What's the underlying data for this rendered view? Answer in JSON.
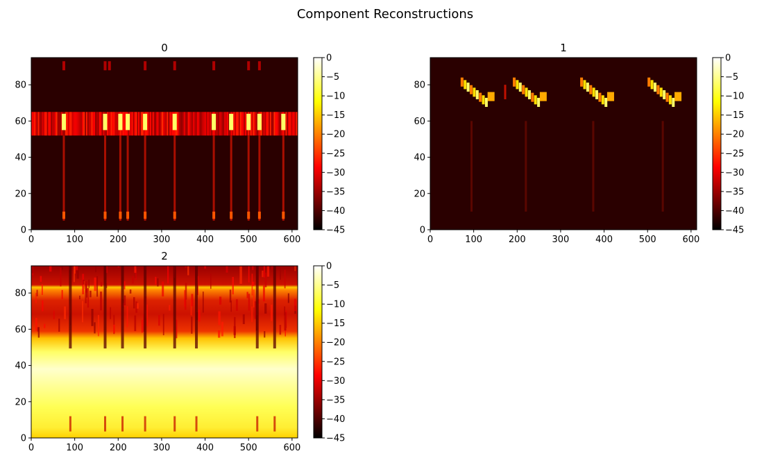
{
  "figure": {
    "title": "Component Reconstructions"
  },
  "chart_data": [
    {
      "type": "heatmap",
      "title": "0",
      "xlim": [
        0,
        613
      ],
      "ylim": [
        0,
        95
      ],
      "xticks": [
        0,
        100,
        200,
        300,
        400,
        500,
        600
      ],
      "yticks": [
        0,
        20,
        40,
        60,
        80
      ],
      "colorbar": {
        "range": [
          -45,
          0
        ],
        "ticks": [
          0,
          -5,
          -10,
          -15,
          -20,
          -25,
          -30,
          -35,
          -40,
          -45
        ]
      },
      "colormap": "hot",
      "pattern": "band",
      "band": {
        "y": [
          52,
          65
        ],
        "level": -28
      },
      "events_x": [
        75,
        170,
        205,
        222,
        262,
        330,
        420,
        460,
        500,
        525,
        580
      ],
      "top_dots_x": [
        75,
        170,
        180,
        262,
        330,
        420,
        500,
        525
      ]
    },
    {
      "type": "heatmap",
      "title": "1",
      "xlim": [
        0,
        613
      ],
      "ylim": [
        0,
        95
      ],
      "xticks": [
        0,
        100,
        200,
        300,
        400,
        500,
        600
      ],
      "yticks": [
        0,
        20,
        40,
        60,
        80
      ],
      "colorbar": {
        "range": [
          -45,
          0
        ],
        "ticks": [
          0,
          -5,
          -10,
          -15,
          -20,
          -25,
          -30,
          -35,
          -40,
          -45
        ]
      },
      "colormap": "hot",
      "pattern": "chirps",
      "chirps_x": [
        70,
        190,
        345,
        500
      ],
      "events_x": [
        95,
        220,
        375,
        535
      ]
    },
    {
      "type": "heatmap",
      "title": "2",
      "xlim": [
        0,
        613
      ],
      "ylim": [
        0,
        95
      ],
      "xticks": [
        0,
        100,
        200,
        300,
        400,
        500,
        600
      ],
      "yticks": [
        0,
        20,
        40,
        60,
        80
      ],
      "colorbar": {
        "range": [
          -45,
          0
        ],
        "ticks": [
          0,
          -5,
          -10,
          -15,
          -20,
          -25,
          -30,
          -35,
          -40,
          -45
        ]
      },
      "colormap": "hot",
      "pattern": "residual",
      "events_x": [
        90,
        170,
        210,
        262,
        330,
        380,
        520,
        560
      ]
    }
  ]
}
